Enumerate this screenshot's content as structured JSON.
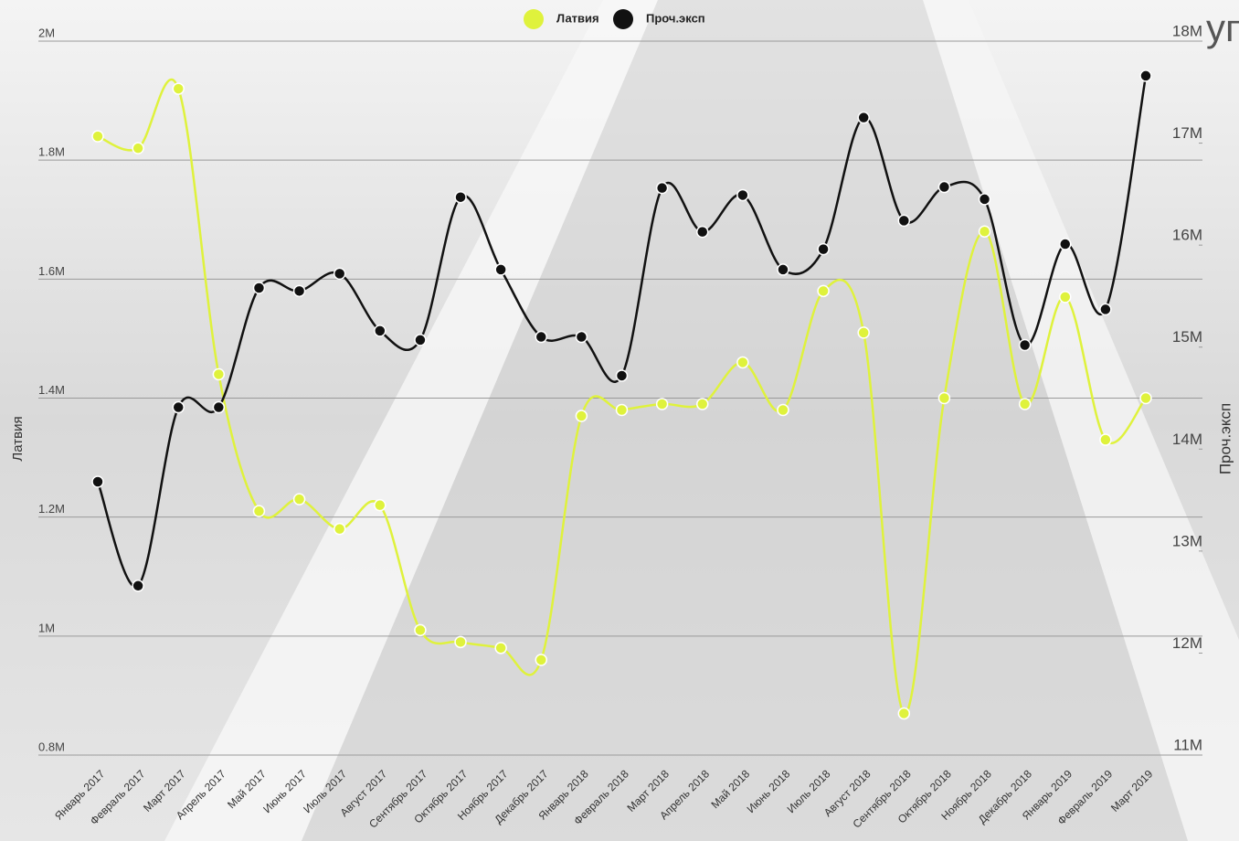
{
  "chart_data": {
    "type": "line",
    "title": "уп",
    "categories": [
      "Январь 2017",
      "Февраль 2017",
      "Март 2017",
      "Апрель 2017",
      "Май 2017",
      "Июнь 2017",
      "Июль 2017",
      "Август 2017",
      "Сентябрь 2017",
      "Октябрь 2017",
      "Ноябрь 2017",
      "Декабрь 2017",
      "Январь 2018",
      "Февраль 2018",
      "Март 2018",
      "Апрель 2018",
      "Май 2018",
      "Июнь 2018",
      "Июль 2018",
      "Август 2018",
      "Сентябрь 2018",
      "Октябрь 2018",
      "Ноябрь 2018",
      "Декабрь 2018",
      "Январь 2019",
      "Февраль 2019",
      "Март 2019"
    ],
    "series": [
      {
        "name": "Латвия",
        "color": "#dff23c",
        "axis": "y",
        "values": [
          1840000,
          1820000,
          1920000,
          1440000,
          1210000,
          1230000,
          1180000,
          1220000,
          1010000,
          990000,
          980000,
          960000,
          1370000,
          1380000,
          1390000,
          1390000,
          1460000,
          1380000,
          1580000,
          1510000,
          870000,
          1400000,
          1680000,
          1390000,
          1570000,
          1330000,
          1400000
        ]
      },
      {
        "name": "Проч.эксп",
        "color": "#111111",
        "axis": "y2",
        "values": [
          13680000,
          12660000,
          14410000,
          14410000,
          15580000,
          15550000,
          15720000,
          15160000,
          15070000,
          16470000,
          15760000,
          15100000,
          15100000,
          14720000,
          16560000,
          16130000,
          16490000,
          15760000,
          15960000,
          17250000,
          16240000,
          16570000,
          16450000,
          15020000,
          16010000,
          15370000,
          17660000
        ]
      }
    ],
    "ylabel": "Латвия",
    "y2label": "Проч.эксп",
    "ylim": [
      800000,
      2000000
    ],
    "yticks": [
      {
        "value": 800000,
        "label": "0.8M"
      },
      {
        "value": 1000000,
        "label": "1M"
      },
      {
        "value": 1200000,
        "label": "1.2M"
      },
      {
        "value": 1400000,
        "label": "1.4M"
      },
      {
        "value": 1600000,
        "label": "1.6M"
      },
      {
        "value": 1800000,
        "label": "1.8M"
      },
      {
        "value": 2000000,
        "label": "2M"
      }
    ],
    "y2lim": [
      11000000,
      18000000
    ],
    "y2ticks": [
      {
        "value": 11000000,
        "label": "11M"
      },
      {
        "value": 12000000,
        "label": "12M"
      },
      {
        "value": 13000000,
        "label": "13M"
      },
      {
        "value": 14000000,
        "label": "14M"
      },
      {
        "value": 15000000,
        "label": "15M"
      },
      {
        "value": 16000000,
        "label": "16M"
      },
      {
        "value": 17000000,
        "label": "17M"
      },
      {
        "value": 18000000,
        "label": "18M"
      }
    ],
    "grid": true,
    "legend": "top"
  }
}
